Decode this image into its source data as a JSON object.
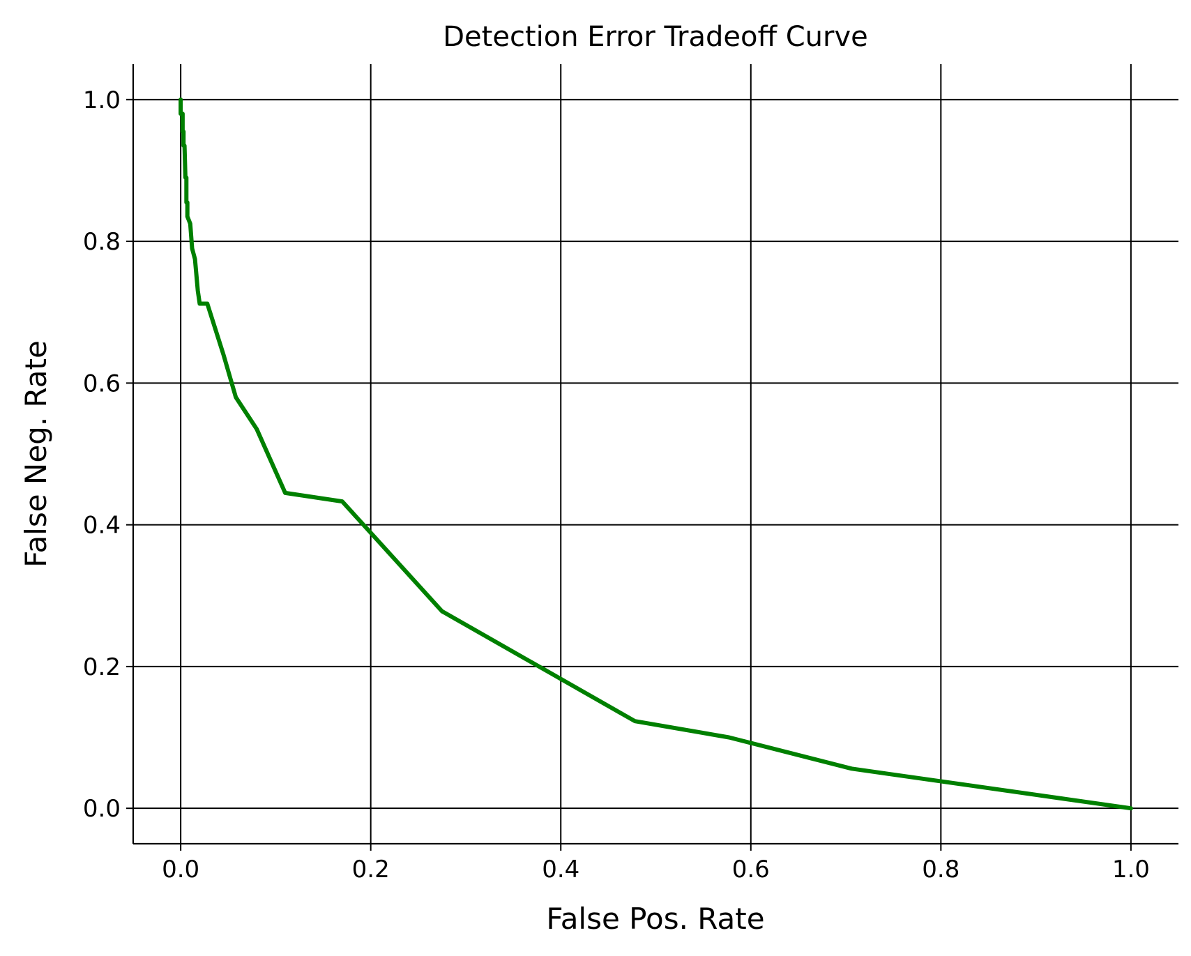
{
  "chart_data": {
    "type": "line",
    "title": "Detection Error Tradeoff Curve",
    "xlabel": "False Pos. Rate",
    "ylabel": "False Neg. Rate",
    "xlim": [
      -0.05,
      1.05
    ],
    "ylim": [
      -0.05,
      1.05
    ],
    "xticks": [
      0.0,
      0.2,
      0.4,
      0.6,
      0.8,
      1.0
    ],
    "yticks": [
      0.0,
      0.2,
      0.4,
      0.6,
      0.8,
      1.0
    ],
    "xtick_labels": [
      "0.0",
      "0.2",
      "0.4",
      "0.6",
      "0.8",
      "1.0"
    ],
    "ytick_labels": [
      "0.0",
      "0.2",
      "0.4",
      "0.6",
      "0.8",
      "1.0"
    ],
    "grid": true,
    "legend": null,
    "series": [
      {
        "color": "#008000",
        "x": [
          0.0,
          0.0,
          0.002,
          0.002,
          0.003,
          0.003,
          0.004,
          0.005,
          0.006,
          0.006,
          0.007,
          0.007,
          0.01,
          0.012,
          0.015,
          0.018,
          0.02,
          0.028,
          0.045,
          0.058,
          0.08,
          0.11,
          0.17,
          0.275,
          0.478,
          0.577,
          0.706,
          1.0
        ],
        "y": [
          1.0,
          0.98,
          0.98,
          0.955,
          0.955,
          0.935,
          0.935,
          0.89,
          0.89,
          0.855,
          0.855,
          0.835,
          0.825,
          0.79,
          0.775,
          0.73,
          0.712,
          0.712,
          0.64,
          0.58,
          0.535,
          0.445,
          0.433,
          0.278,
          0.123,
          0.1,
          0.056,
          0.0
        ]
      }
    ]
  }
}
